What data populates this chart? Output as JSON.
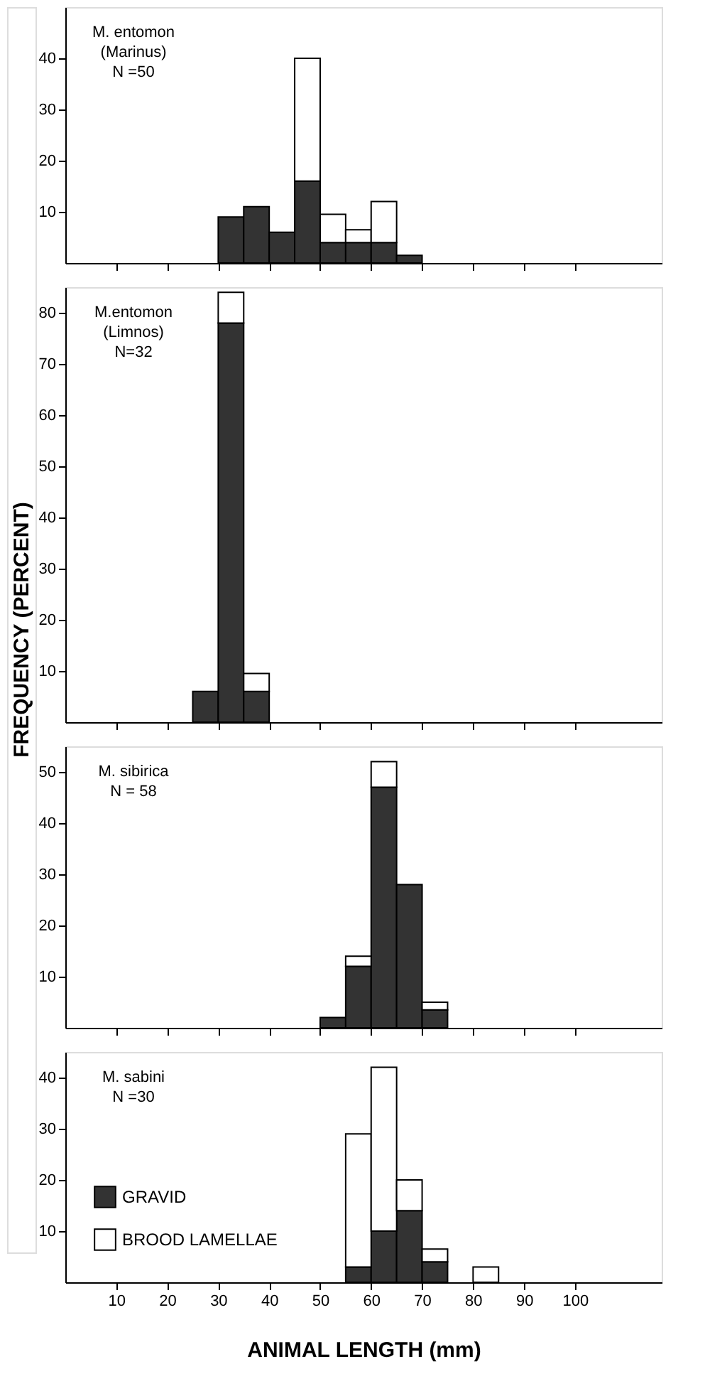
{
  "chart_data": [
    {
      "type": "bar",
      "stacked": true,
      "x": [
        32.5,
        37.5,
        42.5,
        47.5,
        52.5,
        57.5,
        62.5,
        67.5
      ],
      "series": [
        {
          "color": "#333333",
          "values": [
            9,
            11,
            6,
            16,
            4,
            4,
            4,
            1.5
          ]
        },
        {
          "color": "#ffffff",
          "values": [
            0,
            0,
            0,
            24,
            5.5,
            2.5,
            8,
            0
          ]
        }
      ],
      "xlim": [
        0,
        117
      ],
      "xticks": [
        10,
        20,
        30,
        40,
        50,
        60,
        70,
        80,
        90,
        100
      ],
      "ylim": [
        0,
        50
      ],
      "yticks": [
        10,
        20,
        30,
        40
      ],
      "tick_labels": "y",
      "grid": false,
      "legend": false,
      "annotations": [
        "M. entomon",
        "(Marinus)",
        "N =50"
      ]
    },
    {
      "type": "bar",
      "stacked": true,
      "x": [
        27.5,
        32.5,
        37.5
      ],
      "series": [
        {
          "color": "#333333",
          "values": [
            6,
            78,
            6
          ]
        },
        {
          "color": "#ffffff",
          "values": [
            0,
            6,
            3.5
          ]
        }
      ],
      "xlim": [
        0,
        117
      ],
      "xticks": [
        10,
        20,
        30,
        40,
        50,
        60,
        70,
        80,
        90,
        100
      ],
      "ylim": [
        0,
        85
      ],
      "yticks": [
        10,
        20,
        30,
        40,
        50,
        60,
        70,
        80
      ],
      "tick_labels": "y",
      "grid": false,
      "legend": false,
      "ylabel": "FREQUENCY (PERCENT)",
      "annotations": [
        "M.entomon",
        "(Limnos)",
        "N=32"
      ]
    },
    {
      "type": "bar",
      "stacked": true,
      "x": [
        52.5,
        57.5,
        62.5,
        67.5,
        72.5
      ],
      "series": [
        {
          "color": "#333333",
          "values": [
            2,
            12,
            47,
            28,
            3.5
          ]
        },
        {
          "color": "#ffffff",
          "values": [
            0,
            2,
            5,
            0,
            1.5
          ]
        }
      ],
      "xlim": [
        0,
        117
      ],
      "xticks": [
        10,
        20,
        30,
        40,
        50,
        60,
        70,
        80,
        90,
        100
      ],
      "ylim": [
        0,
        55
      ],
      "yticks": [
        10,
        20,
        30,
        40,
        50
      ],
      "tick_labels": "y",
      "grid": false,
      "legend": false,
      "annotations": [
        "M. sibirica",
        "N = 58"
      ]
    },
    {
      "type": "bar",
      "stacked": true,
      "x": [
        57.5,
        62.5,
        67.5,
        72.5,
        77.5,
        82.5
      ],
      "series": [
        {
          "name": "GRAVID",
          "color": "#333333",
          "values": [
            3,
            10,
            14,
            4,
            0,
            0
          ]
        },
        {
          "name": "BROOD LAMELLAE",
          "color": "#ffffff",
          "values": [
            26,
            32,
            6,
            2.5,
            0,
            3
          ]
        }
      ],
      "xlim": [
        0,
        117
      ],
      "xticks": [
        10,
        20,
        30,
        40,
        50,
        60,
        70,
        80,
        90,
        100
      ],
      "ylim": [
        0,
        45
      ],
      "yticks": [
        10,
        20,
        30,
        40
      ],
      "grid": false,
      "legend": "bottom left",
      "xlabel": "ANIMAL LENGTH (mm)",
      "annotations": [
        "M. sabini",
        "N =30"
      ]
    }
  ]
}
